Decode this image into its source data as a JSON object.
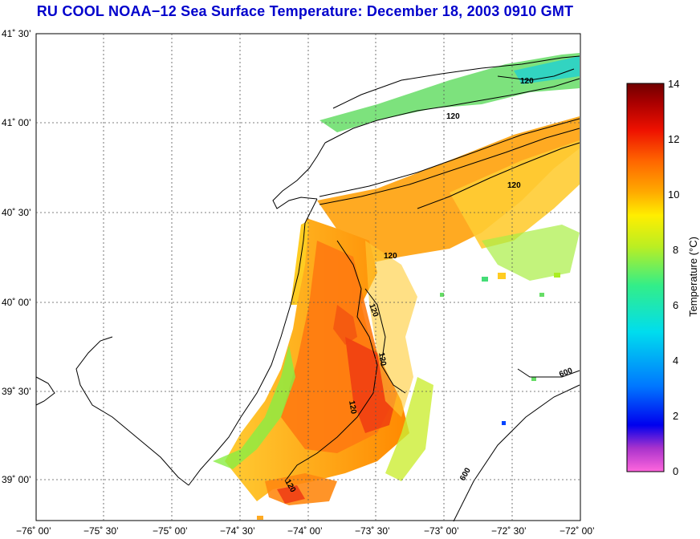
{
  "title": "RU COOL  NOAA−12  Sea Surface Temperature:  December 18, 2003 0910 GMT",
  "map": {
    "lat_labels": [
      "41˚ 30’",
      "41˚ 00’",
      "40˚ 30’",
      "40˚ 00’",
      "39˚ 30’",
      "39˚ 00’"
    ],
    "lon_labels": [
      "−76˚ 00’",
      "−75˚ 30’",
      "−75˚ 00’",
      "−74˚ 30’",
      "−74˚ 00’",
      "−73˚ 30’",
      "−73˚ 00’",
      "−72˚ 30’",
      "−72˚ 00’"
    ],
    "contour_labels": [
      "120",
      "120",
      "120",
      "120",
      "120",
      "120",
      "120",
      "120",
      "600",
      "600"
    ],
    "lat_range": [
      38.83,
      41.5
    ],
    "lon_range": [
      -76.0,
      -72.0
    ]
  },
  "colorbar": {
    "title": "Temperature (°C)",
    "ticks": [
      "14",
      "12",
      "10",
      "8",
      "6",
      "4",
      "2",
      "0"
    ],
    "range": [
      0,
      14
    ],
    "colors": [
      "#ff44cc",
      "#8833cc",
      "#0000ff",
      "#0088ff",
      "#00ddee",
      "#22ee99",
      "#aaee22",
      "#ffee00",
      "#ffaa00",
      "#ff6600",
      "#ee1100",
      "#aa0000",
      "#770000"
    ]
  }
}
